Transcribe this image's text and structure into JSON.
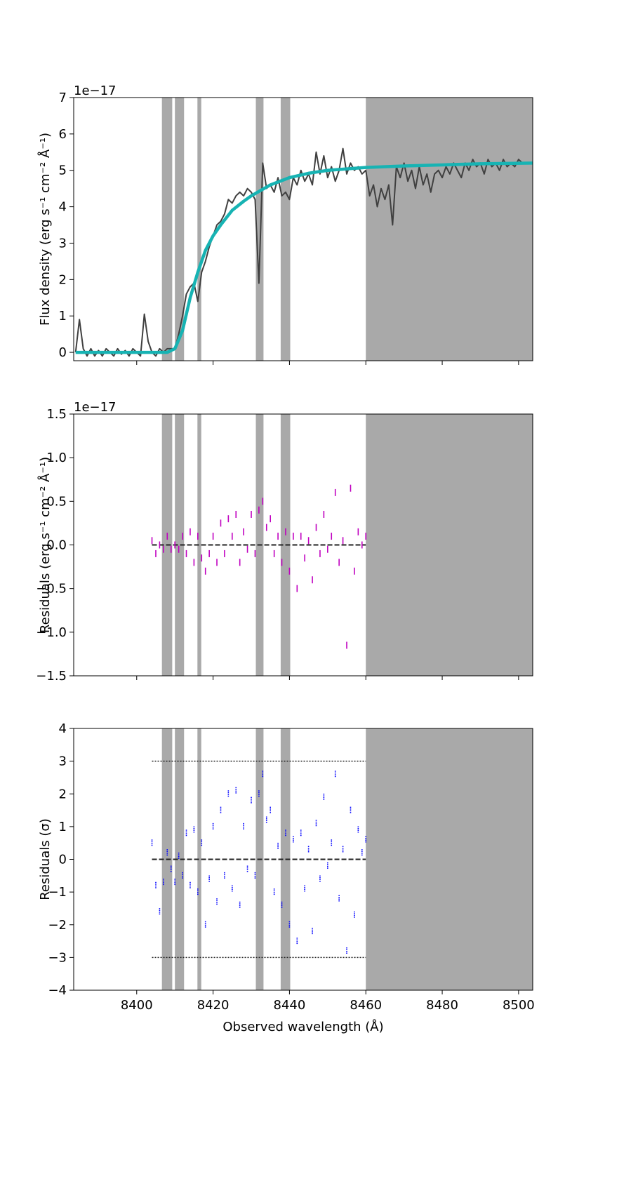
{
  "chart_data": [
    {
      "type": "line",
      "ylabel": "Flux density (erg s⁻¹ cm⁻² Å⁻¹)",
      "offset_label": "1e−17",
      "xlim": [
        8383.5,
        8503.7
      ],
      "xticks": [
        8400,
        8420,
        8440,
        8460,
        8480,
        8500
      ],
      "show_xtick_labels": false,
      "ylim": [
        -0.23,
        7
      ],
      "yticks": [
        0,
        1,
        2,
        3,
        4,
        5,
        6,
        7
      ],
      "masked_regions": [
        [
          8406.6,
          8409.3
        ],
        [
          8410,
          8412.4
        ],
        [
          8415.9,
          8416.9
        ],
        [
          8431.2,
          8433.2
        ],
        [
          8437.7,
          8440.2
        ],
        [
          8460,
          8503.7
        ]
      ],
      "series": [
        {
          "color": "#404040",
          "width": 2,
          "x": [
            8384,
            8385,
            8386,
            8387,
            8388,
            8389,
            8390,
            8391,
            8392,
            8393,
            8394,
            8395,
            8396,
            8397,
            8398,
            8399,
            8400,
            8401,
            8402,
            8403,
            8404,
            8405,
            8406,
            8407,
            8408,
            8409,
            8410,
            8411,
            8412,
            8413,
            8414,
            8415,
            8416,
            8417,
            8418,
            8419,
            8420,
            8421,
            8422,
            8423,
            8424,
            8425,
            8426,
            8427,
            8428,
            8429,
            8430,
            8431,
            8432,
            8433,
            8434,
            8435,
            8436,
            8437,
            8438,
            8439,
            8440,
            8441,
            8442,
            8443,
            8444,
            8445,
            8446,
            8447,
            8448,
            8449,
            8450,
            8451,
            8452,
            8453,
            8454,
            8455,
            8456,
            8457,
            8458,
            8459,
            8460,
            8461,
            8462,
            8463,
            8464,
            8465,
            8466,
            8467,
            8468,
            8469,
            8470,
            8471,
            8472,
            8473,
            8474,
            8475,
            8476,
            8477,
            8478,
            8479,
            8480,
            8481,
            8482,
            8483,
            8484,
            8485,
            8486,
            8487,
            8488,
            8489,
            8490,
            8491,
            8492,
            8493,
            8494,
            8495,
            8496,
            8497,
            8498,
            8499,
            8500,
            8501,
            8502,
            8503
          ],
          "values": [
            0,
            0.9,
            0.1,
            -0.1,
            0.1,
            -0.1,
            0.05,
            -0.1,
            0.1,
            0,
            -0.1,
            0.1,
            -0.05,
            0.05,
            -0.1,
            0.1,
            0,
            -0.1,
            1.05,
            0.3,
            0,
            -0.1,
            0.1,
            0,
            0.1,
            0.1,
            0.1,
            0.5,
            1.0,
            1.6,
            1.8,
            1.9,
            1.4,
            2.2,
            2.5,
            2.9,
            3.2,
            3.5,
            3.6,
            3.8,
            4.2,
            4.1,
            4.3,
            4.4,
            4.3,
            4.5,
            4.4,
            4.2,
            1.9,
            5.2,
            4.5,
            4.6,
            4.4,
            4.8,
            4.3,
            4.4,
            4.2,
            4.8,
            4.6,
            5.0,
            4.7,
            4.9,
            4.6,
            5.5,
            4.9,
            5.4,
            4.8,
            5.1,
            4.7,
            5.0,
            5.6,
            4.9,
            5.2,
            5.0,
            5.1,
            4.9,
            5.0,
            4.3,
            4.6,
            4.0,
            4.5,
            4.2,
            4.6,
            3.5,
            5.1,
            4.8,
            5.2,
            4.7,
            5.0,
            4.5,
            5.1,
            4.6,
            4.9,
            4.4,
            4.9,
            5.0,
            4.8,
            5.1,
            4.9,
            5.2,
            5.0,
            4.8,
            5.2,
            5.0,
            5.3,
            5.1,
            5.2,
            4.9,
            5.3,
            5.1,
            5.2,
            5.0,
            5.3,
            5.1,
            5.2,
            5.1,
            5.3,
            5.2,
            5.2,
            5.2
          ]
        },
        {
          "color": "#17b3b3",
          "width": 4.5,
          "x": [
            8384,
            8408,
            8410,
            8412,
            8414,
            8416,
            8418,
            8420,
            8422,
            8425,
            8428,
            8430,
            8435,
            8440,
            8445,
            8450,
            8460,
            8470,
            8480,
            8490,
            8503.7
          ],
          "values": [
            0,
            0,
            0.1,
            0.6,
            1.5,
            2.2,
            2.8,
            3.2,
            3.5,
            3.9,
            4.15,
            4.3,
            4.6,
            4.8,
            4.92,
            5.0,
            5.08,
            5.12,
            5.15,
            5.18,
            5.2
          ]
        }
      ]
    },
    {
      "type": "scatter",
      "ylabel": "Residuals (erg s⁻¹ cm⁻² Å⁻¹)",
      "offset_label": "1e−17",
      "xlim": [
        8383.5,
        8503.7
      ],
      "xticks": [
        8400,
        8420,
        8440,
        8460,
        8480,
        8500
      ],
      "show_xtick_labels": false,
      "ylim": [
        -1.5,
        1.5
      ],
      "yticks": [
        {
          "value": -1.5,
          "label": "−1.5"
        },
        {
          "value": -1,
          "label": "−1.0"
        },
        {
          "value": -0.5,
          "label": "−0.5"
        },
        {
          "value": 0,
          "label": "0.0"
        },
        {
          "value": 0.5,
          "label": "0.5"
        },
        {
          "value": 1,
          "label": "1.0"
        },
        {
          "value": 1.5,
          "label": "1.5"
        }
      ],
      "masked_regions": [
        [
          8406.6,
          8409.3
        ],
        [
          8410,
          8412.4
        ],
        [
          8415.9,
          8416.9
        ],
        [
          8431.2,
          8433.2
        ],
        [
          8437.7,
          8440.2
        ],
        [
          8460,
          8503.7
        ]
      ],
      "hlines": [
        {
          "y": 0,
          "xmin": 8404,
          "xmax": 8460,
          "style": "dashed"
        }
      ],
      "series": [
        {
          "color": "#c000c0",
          "x": [
            8404,
            8405,
            8406,
            8407,
            8408,
            8409,
            8410,
            8411,
            8412,
            8413,
            8414,
            8415,
            8416,
            8417,
            8418,
            8419,
            8420,
            8421,
            8422,
            8423,
            8424,
            8425,
            8426,
            8427,
            8428,
            8429,
            8430,
            8431,
            8432,
            8433,
            8434,
            8435,
            8436,
            8437,
            8438,
            8439,
            8440,
            8441,
            8442,
            8443,
            8444,
            8445,
            8446,
            8447,
            8448,
            8449,
            8450,
            8451,
            8452,
            8453,
            8454,
            8455,
            8456,
            8457,
            8458,
            8459,
            8460
          ],
          "values": [
            0.05,
            -0.1,
            0,
            -0.05,
            0.1,
            -0.05,
            0,
            -0.05,
            0.1,
            -0.1,
            0.15,
            -0.2,
            0.1,
            -0.15,
            -0.3,
            -0.1,
            0.1,
            -0.2,
            0.25,
            -0.1,
            0.3,
            0.1,
            0.35,
            -0.2,
            0.15,
            -0.05,
            0.35,
            -0.1,
            0.4,
            0.5,
            0.2,
            0.3,
            -0.1,
            0.1,
            -0.2,
            0.15,
            -0.3,
            0.1,
            -0.5,
            0.1,
            -0.15,
            0.05,
            -0.4,
            0.2,
            -0.1,
            0.35,
            -0.05,
            0.1,
            0.6,
            -0.2,
            0.05,
            -1.15,
            0.65,
            -0.3,
            0.15,
            0,
            0.1
          ]
        }
      ]
    },
    {
      "type": "scatter",
      "ylabel": "Residuals (σ)",
      "xlabel": "Observed wavelength (Å)",
      "xlim": [
        8383.5,
        8503.7
      ],
      "xticks": [
        8400,
        8420,
        8440,
        8460,
        8480,
        8500
      ],
      "show_xtick_labels": true,
      "ylim": [
        -4,
        4
      ],
      "yticks": [
        {
          "value": -4,
          "label": "−4"
        },
        {
          "value": -3,
          "label": "−3"
        },
        {
          "value": -2,
          "label": "−2"
        },
        {
          "value": -1,
          "label": "−1"
        },
        0,
        1,
        2,
        3,
        4
      ],
      "masked_regions": [
        [
          8406.6,
          8409.3
        ],
        [
          8410,
          8412.4
        ],
        [
          8415.9,
          8416.9
        ],
        [
          8431.2,
          8433.2
        ],
        [
          8437.7,
          8440.2
        ],
        [
          8460,
          8503.7
        ]
      ],
      "hlines": [
        {
          "y": 0,
          "xmin": 8404,
          "xmax": 8460,
          "style": "dashed"
        },
        {
          "y": 3,
          "xmin": 8404,
          "xmax": 8460,
          "style": "dotted"
        },
        {
          "y": -3,
          "xmin": 8404,
          "xmax": 8460,
          "style": "dotted"
        }
      ],
      "series": [
        {
          "color": "#0000ff",
          "x": [
            8404,
            8405,
            8406,
            8407,
            8408,
            8409,
            8410,
            8411,
            8412,
            8413,
            8414,
            8415,
            8416,
            8417,
            8418,
            8419,
            8420,
            8421,
            8422,
            8423,
            8424,
            8425,
            8426,
            8427,
            8428,
            8429,
            8430,
            8431,
            8432,
            8433,
            8434,
            8435,
            8436,
            8437,
            8438,
            8439,
            8440,
            8441,
            8442,
            8443,
            8444,
            8445,
            8446,
            8447,
            8448,
            8449,
            8450,
            8451,
            8452,
            8453,
            8454,
            8455,
            8456,
            8457,
            8458,
            8459,
            8460
          ],
          "values": [
            0.5,
            -0.8,
            -1.6,
            -0.7,
            0.2,
            -0.3,
            -0.7,
            0.1,
            -0.5,
            0.8,
            -0.8,
            0.9,
            -1.0,
            0.5,
            -2.0,
            -0.6,
            1.0,
            -1.3,
            1.5,
            -0.5,
            2.0,
            -0.9,
            2.1,
            -1.4,
            1.0,
            -0.3,
            1.8,
            -0.5,
            2.0,
            2.6,
            1.2,
            1.5,
            -1.0,
            0.4,
            -1.4,
            0.8,
            -2.0,
            0.6,
            -2.5,
            0.8,
            -0.9,
            0.3,
            -2.2,
            1.1,
            -0.6,
            1.9,
            -0.2,
            0.5,
            2.6,
            -1.2,
            0.3,
            -2.8,
            1.5,
            -1.7,
            0.9,
            0.2,
            0.6
          ]
        }
      ]
    }
  ]
}
